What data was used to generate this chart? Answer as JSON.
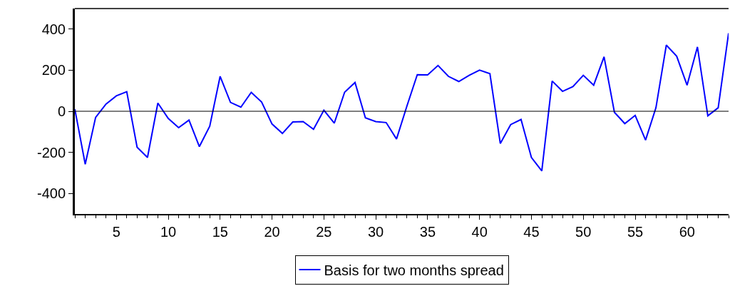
{
  "chart_data": {
    "type": "line",
    "x": [
      1,
      2,
      3,
      4,
      5,
      6,
      7,
      8,
      9,
      10,
      11,
      12,
      13,
      14,
      15,
      16,
      17,
      18,
      19,
      20,
      21,
      22,
      23,
      24,
      25,
      26,
      27,
      28,
      29,
      30,
      31,
      32,
      33,
      34,
      35,
      36,
      37,
      38,
      39,
      40,
      41,
      42,
      43,
      44,
      45,
      46,
      47,
      48,
      49,
      50,
      51,
      52,
      53,
      54,
      55,
      56,
      57,
      58,
      59,
      60,
      61,
      62,
      63,
      64
    ],
    "series": [
      {
        "name": "Basis for two months spread",
        "color": "#0000ff",
        "values": [
          10,
          -258,
          -30,
          35,
          75,
          95,
          -175,
          -225,
          40,
          -35,
          -80,
          -43,
          -172,
          -73,
          170,
          43,
          20,
          92,
          45,
          -62,
          -108,
          -52,
          -50,
          -88,
          5,
          -58,
          93,
          140,
          -32,
          -50,
          -55,
          -135,
          25,
          178,
          177,
          223,
          170,
          145,
          175,
          200,
          183,
          -157,
          -65,
          -40,
          -225,
          -290,
          147,
          97,
          120,
          175,
          127,
          265,
          -5,
          -60,
          -20,
          -140,
          17,
          322,
          268,
          127,
          313,
          -22,
          17,
          380
        ]
      }
    ],
    "xlim": [
      1,
      64
    ],
    "xticks": [
      5,
      10,
      15,
      20,
      25,
      30,
      35,
      40,
      45,
      50,
      55,
      60
    ],
    "ylim": [
      -500,
      500
    ],
    "yticks": [
      -400,
      -200,
      0,
      200,
      400
    ],
    "ref_lines": [
      {
        "axis": "y",
        "value": 0,
        "color": "#000000"
      }
    ],
    "legend": "bottom",
    "marker": "none",
    "line_style": "solid"
  }
}
